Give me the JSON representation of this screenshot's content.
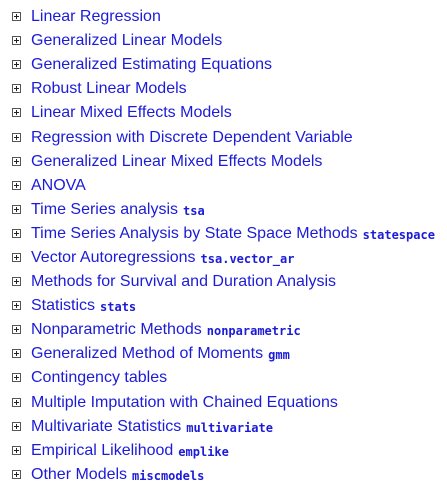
{
  "toc": {
    "items": [
      {
        "label": "Linear Regression",
        "tag": ""
      },
      {
        "label": "Generalized Linear Models",
        "tag": ""
      },
      {
        "label": "Generalized Estimating Equations",
        "tag": ""
      },
      {
        "label": "Robust Linear Models",
        "tag": ""
      },
      {
        "label": "Linear Mixed Effects Models",
        "tag": ""
      },
      {
        "label": "Regression with Discrete Dependent Variable",
        "tag": ""
      },
      {
        "label": "Generalized Linear Mixed Effects Models",
        "tag": ""
      },
      {
        "label": "ANOVA",
        "tag": ""
      },
      {
        "label": "Time Series analysis",
        "tag": "tsa"
      },
      {
        "label": "Time Series Analysis by State Space Methods",
        "tag": "statespace"
      },
      {
        "label": "Vector Autoregressions",
        "tag": "tsa.vector_ar"
      },
      {
        "label": "Methods for Survival and Duration Analysis",
        "tag": ""
      },
      {
        "label": "Statistics",
        "tag": "stats"
      },
      {
        "label": "Nonparametric Methods",
        "tag": "nonparametric"
      },
      {
        "label": "Generalized Method of Moments",
        "tag": "gmm"
      },
      {
        "label": "Contingency tables",
        "tag": ""
      },
      {
        "label": "Multiple Imputation with Chained Equations",
        "tag": ""
      },
      {
        "label": "Multivariate Statistics",
        "tag": "multivariate"
      },
      {
        "label": "Empirical Likelihood",
        "tag": "emplike"
      },
      {
        "label": "Other Models",
        "tag": "miscmodels"
      }
    ]
  },
  "colors": {
    "link": "#1b1bd8",
    "background": "#ffffff"
  },
  "icons": {
    "expander": "plus-box-icon"
  }
}
